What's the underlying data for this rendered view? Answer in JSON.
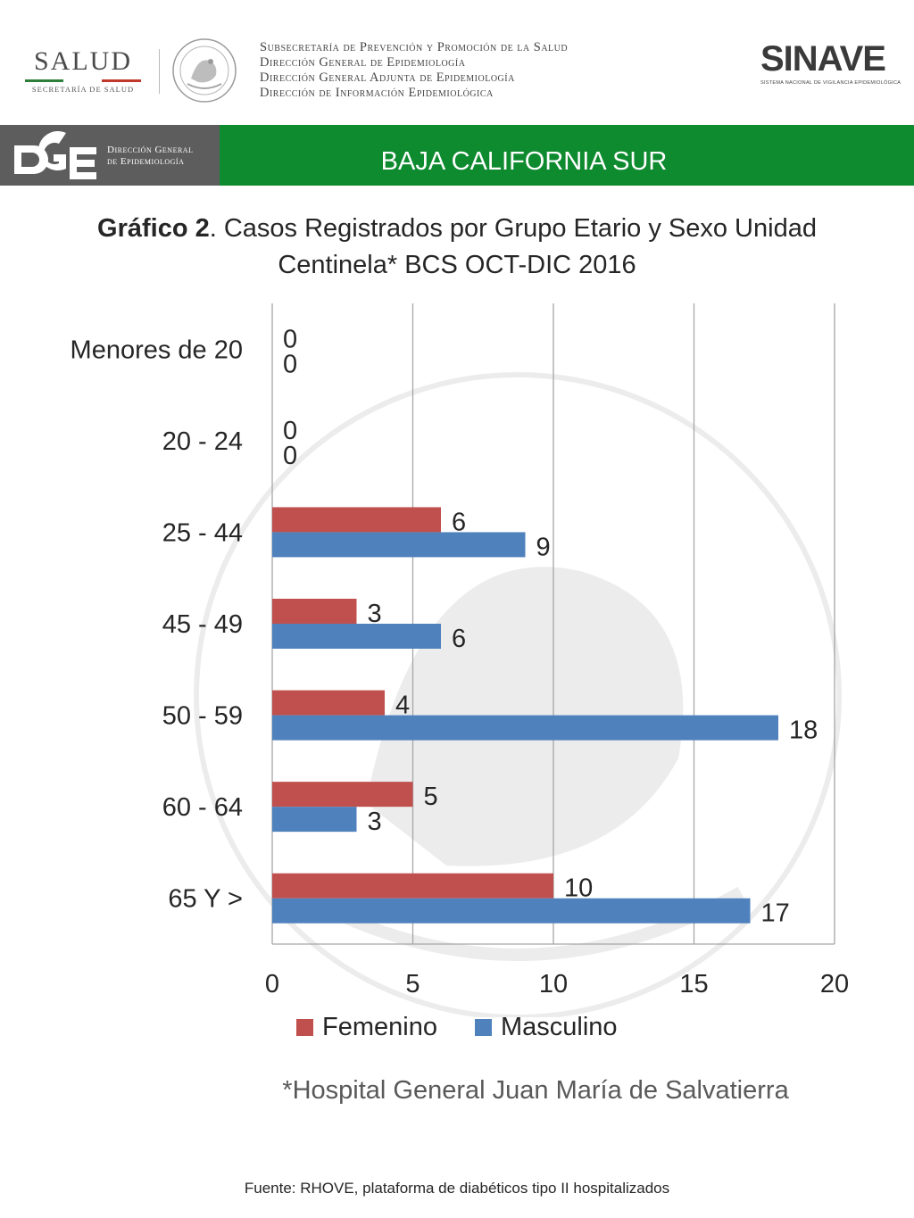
{
  "header": {
    "salud_logo": "SALUD",
    "salud_sub": "SECRETARÍA DE SALUD",
    "subsecretaria_lines": [
      "Subsecretaría de Prevención y Promoción de la Salud",
      "Dirección General de Epidemiología",
      "Dirección General Adjunta de Epidemiología",
      "Dirección de Información Epidemiológica"
    ],
    "sinave_logo": "SINAVE",
    "sinave_sub": "SISTEMA NACIONAL DE VIGILANCIA EPIDEMIOLÓGICA"
  },
  "banner": {
    "dge_line1": "Dirección General",
    "dge_line2": "de Epidemiología",
    "state": "BAJA CALIFORNIA SUR"
  },
  "title_bold": "Gráfico 2",
  "title_rest": ". Casos Registrados por Grupo Etario y Sexo Unidad Centinela* BCS OCT-DIC 2016",
  "footnote": "*Hospital General Juan María de Salvatierra",
  "source": "Fuente: RHOVE, plataforma de diabéticos tipo II hospitalizados",
  "colors": {
    "femenino": "#c0504d",
    "masculino": "#4f81bd",
    "banner_green": "#0e8a2f",
    "banner_gray": "#5d5d5d"
  },
  "chart_data": {
    "type": "bar",
    "orientation": "horizontal",
    "categories": [
      "Menores de 20",
      "20 - 24",
      "25 - 44",
      "45 - 49",
      "50 - 59",
      "60 - 64",
      "65 Y >"
    ],
    "series": [
      {
        "name": "Femenino",
        "values": [
          0,
          0,
          6,
          3,
          4,
          5,
          10
        ]
      },
      {
        "name": "Masculino",
        "values": [
          0,
          0,
          9,
          6,
          18,
          3,
          17
        ]
      }
    ],
    "xlim": [
      0,
      20
    ],
    "xticks": [
      0,
      5,
      10,
      15,
      20
    ],
    "grid": true,
    "legend": "bottom",
    "data_labels": true
  }
}
